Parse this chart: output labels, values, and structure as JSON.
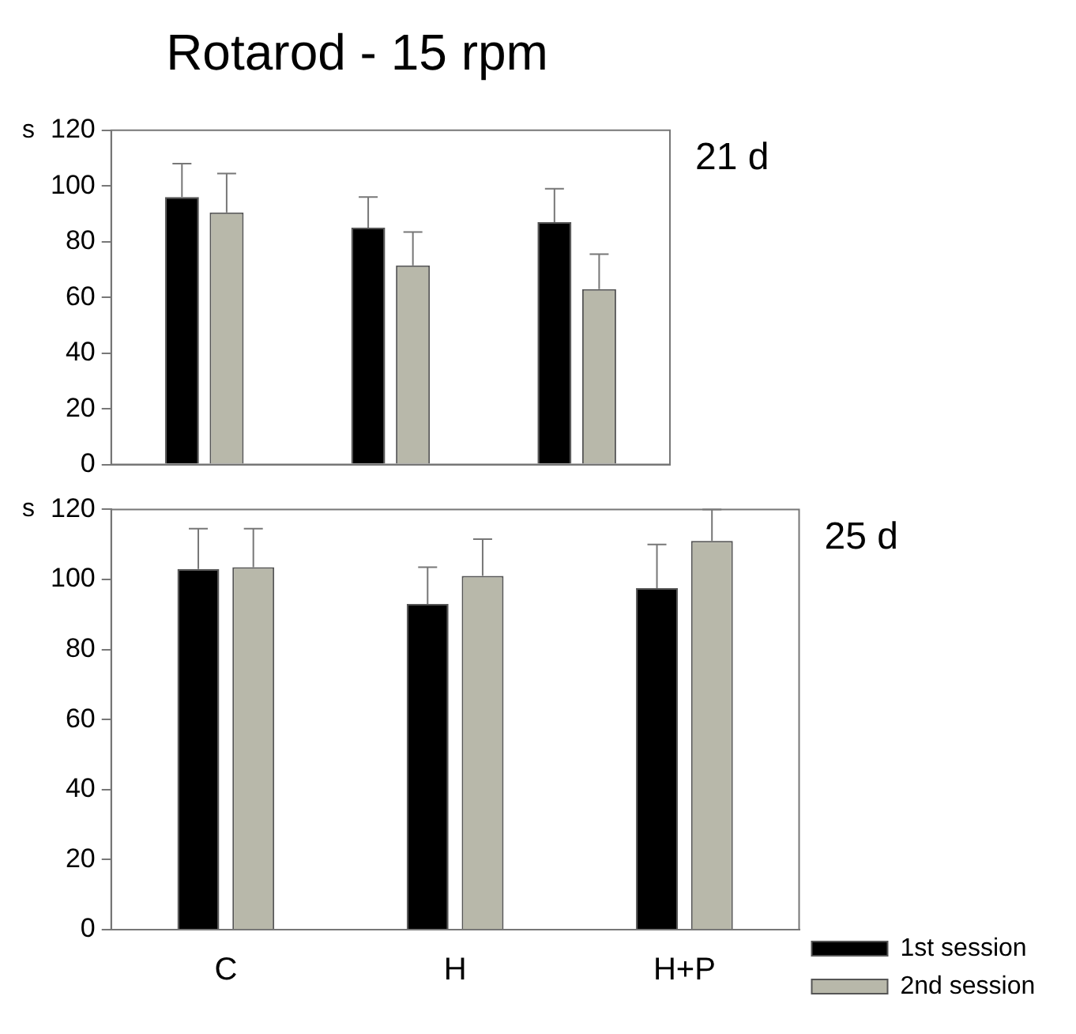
{
  "chart_data": [
    {
      "type": "bar",
      "title": "Rotarod - 15 rpm",
      "ylabel": "s",
      "categories": [
        null,
        null,
        null
      ],
      "series": [
        {
          "color": "#000000",
          "values": [
            96,
            85,
            87
          ],
          "errors": [
            [
              96,
              108
            ],
            [
              85,
              96
            ],
            [
              87,
              99
            ]
          ]
        },
        {
          "color": "#b8b8aa",
          "values": [
            90.5,
            71.5,
            63
          ],
          "errors": [
            [
              90.5,
              104.5
            ],
            [
              71.5,
              83.5
            ],
            [
              63,
              75.5
            ]
          ]
        }
      ],
      "ylim": [
        0,
        120
      ],
      "yticks": [
        0,
        20,
        40,
        60,
        80,
        100,
        120
      ],
      "grid": false,
      "legend": false,
      "annotations": [
        "21 d"
      ]
    },
    {
      "type": "bar",
      "ylabel": "s",
      "categories": [
        "C",
        "H",
        "H+P"
      ],
      "series": [
        {
          "name": "1st session",
          "color": "#000000",
          "values": [
            103,
            93,
            97.5
          ],
          "errors": [
            [
              103,
              114.5
            ],
            [
              93,
              103.5
            ],
            [
              97.5,
              110
            ]
          ]
        },
        {
          "name": "2nd session",
          "color": "#b8b8aa",
          "values": [
            103.5,
            101,
            111
          ],
          "errors": [
            [
              103.5,
              114.5
            ],
            [
              101,
              111.5
            ],
            [
              111,
              120
            ]
          ]
        }
      ],
      "ylim": [
        0,
        120
      ],
      "yticks": [
        0,
        20,
        40,
        60,
        80,
        100,
        120
      ],
      "grid": false,
      "legend": "bottom right",
      "annotations": [
        "25 d"
      ]
    }
  ]
}
